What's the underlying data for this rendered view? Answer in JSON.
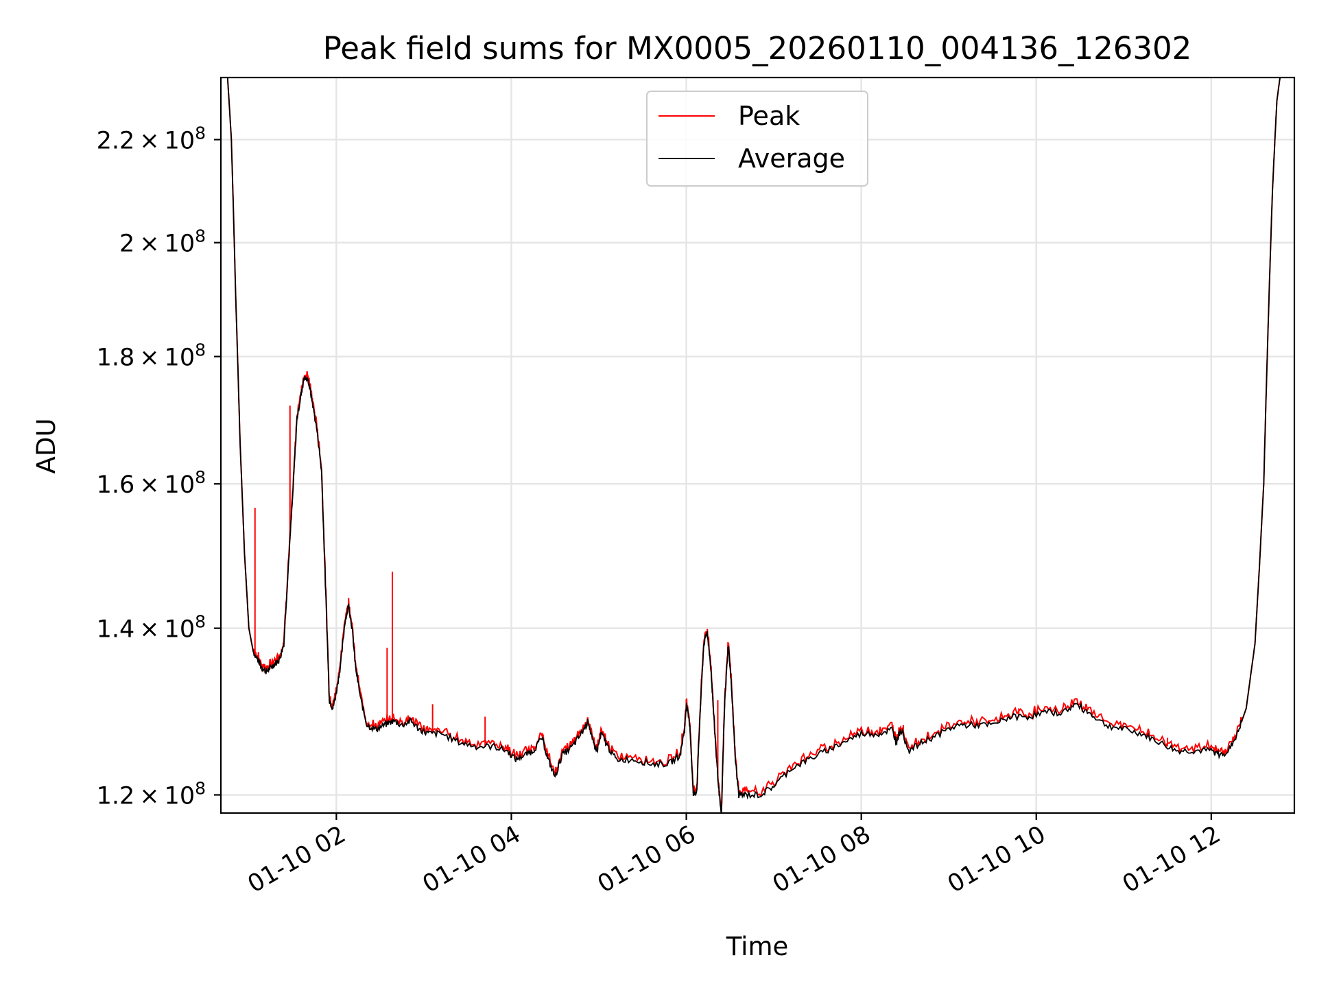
{
  "chart_data": {
    "type": "line",
    "title": "Peak field sums for MX0005_20260110_004136_126302",
    "xlabel": "Time",
    "ylabel": "ADU",
    "grid": true,
    "legend_position": "upper-center",
    "xlim": [
      0.68,
      12.95
    ],
    "ylim": [
      118000000.0,
      233000000.0
    ],
    "y_scale": "log",
    "x_ticks": [
      {
        "value": 2,
        "label": "01-10 02"
      },
      {
        "value": 4,
        "label": "01-10 04"
      },
      {
        "value": 6,
        "label": "01-10 06"
      },
      {
        "value": 8,
        "label": "01-10 08"
      },
      {
        "value": 10,
        "label": "01-10 10"
      },
      {
        "value": 12,
        "label": "01-10 12"
      }
    ],
    "y_ticks": [
      {
        "value": 120000000.0,
        "mantissa": "1.2",
        "base": "10",
        "exp": "8"
      },
      {
        "value": 140000000.0,
        "mantissa": "1.4",
        "base": "10",
        "exp": "8"
      },
      {
        "value": 160000000.0,
        "mantissa": "1.6",
        "base": "10",
        "exp": "8"
      },
      {
        "value": 180000000.0,
        "mantissa": "1.8",
        "base": "10",
        "exp": "8"
      },
      {
        "value": 200000000.0,
        "mantissa": "2",
        "base": "10",
        "exp": "8"
      },
      {
        "value": 220000000.0,
        "mantissa": "2.2",
        "base": "10",
        "exp": "8"
      }
    ],
    "series": [
      {
        "name": "Peak",
        "color": "#ff0000"
      },
      {
        "name": "Average",
        "color": "#000000"
      }
    ],
    "average_points": [
      [
        0.68,
        235000000.0
      ],
      [
        0.75,
        235000000.0
      ],
      [
        0.8,
        220000000.0
      ],
      [
        0.85,
        190000000.0
      ],
      [
        0.9,
        166000000.0
      ],
      [
        0.95,
        150000000.0
      ],
      [
        1.0,
        140000000.0
      ],
      [
        1.05,
        137000000.0
      ],
      [
        1.1,
        136000000.0
      ],
      [
        1.15,
        135000000.0
      ],
      [
        1.2,
        134500000.0
      ],
      [
        1.25,
        135000000.0
      ],
      [
        1.3,
        135500000.0
      ],
      [
        1.35,
        136000000.0
      ],
      [
        1.4,
        138000000.0
      ],
      [
        1.45,
        148000000.0
      ],
      [
        1.5,
        158000000.0
      ],
      [
        1.55,
        170000000.0
      ],
      [
        1.6,
        174000000.0
      ],
      [
        1.63,
        176500000.0
      ],
      [
        1.68,
        176000000.0
      ],
      [
        1.72,
        173000000.0
      ],
      [
        1.78,
        168000000.0
      ],
      [
        1.83,
        162000000.0
      ],
      [
        1.88,
        144000000.0
      ],
      [
        1.92,
        131000000.0
      ],
      [
        1.96,
        130000000.0
      ],
      [
        2.0,
        132000000.0
      ],
      [
        2.05,
        135500000.0
      ],
      [
        2.1,
        141000000.0
      ],
      [
        2.14,
        143000000.0
      ],
      [
        2.18,
        140000000.0
      ],
      [
        2.22,
        135000000.0
      ],
      [
        2.28,
        131000000.0
      ],
      [
        2.35,
        128000000.0
      ],
      [
        2.45,
        127500000.0
      ],
      [
        2.55,
        128000000.0
      ],
      [
        2.65,
        128500000.0
      ],
      [
        2.75,
        128000000.0
      ],
      [
        2.85,
        128500000.0
      ],
      [
        2.95,
        127500000.0
      ],
      [
        3.05,
        127000000.0
      ],
      [
        3.2,
        127000000.0
      ],
      [
        3.4,
        126000000.0
      ],
      [
        3.6,
        125500000.0
      ],
      [
        3.8,
        125500000.0
      ],
      [
        3.95,
        125000000.0
      ],
      [
        4.05,
        124000000.0
      ],
      [
        4.15,
        124500000.0
      ],
      [
        4.25,
        125000000.0
      ],
      [
        4.35,
        126500000.0
      ],
      [
        4.42,
        124000000.0
      ],
      [
        4.5,
        122000000.0
      ],
      [
        4.58,
        124500000.0
      ],
      [
        4.7,
        125500000.0
      ],
      [
        4.8,
        127000000.0
      ],
      [
        4.88,
        128500000.0
      ],
      [
        4.93,
        126000000.0
      ],
      [
        4.98,
        125000000.0
      ],
      [
        5.03,
        127000000.0
      ],
      [
        5.1,
        125500000.0
      ],
      [
        5.2,
        124000000.0
      ],
      [
        5.4,
        124000000.0
      ],
      [
        5.6,
        123500000.0
      ],
      [
        5.8,
        123500000.0
      ],
      [
        5.93,
        124500000.0
      ],
      [
        5.98,
        127500000.0
      ],
      [
        6.0,
        130500000.0
      ],
      [
        6.04,
        128000000.0
      ],
      [
        6.08,
        120000000.0
      ],
      [
        6.12,
        120500000.0
      ],
      [
        6.16,
        130000000.0
      ],
      [
        6.2,
        138000000.0
      ],
      [
        6.24,
        139500000.0
      ],
      [
        6.28,
        135000000.0
      ],
      [
        6.32,
        128000000.0
      ],
      [
        6.36,
        122000000.0
      ],
      [
        6.4,
        117500000.0
      ],
      [
        6.44,
        131000000.0
      ],
      [
        6.48,
        138000000.0
      ],
      [
        6.52,
        132000000.0
      ],
      [
        6.56,
        124000000.0
      ],
      [
        6.6,
        120000000.0
      ],
      [
        6.7,
        120000000.0
      ],
      [
        6.85,
        120000000.0
      ],
      [
        7.0,
        121000000.0
      ],
      [
        7.2,
        123000000.0
      ],
      [
        7.4,
        124000000.0
      ],
      [
        7.6,
        125000000.0
      ],
      [
        7.8,
        126000000.0
      ],
      [
        8.0,
        127000000.0
      ],
      [
        8.2,
        127000000.0
      ],
      [
        8.35,
        127500000.0
      ],
      [
        8.4,
        126000000.0
      ],
      [
        8.45,
        127500000.0
      ],
      [
        8.55,
        125000000.0
      ],
      [
        8.7,
        126000000.0
      ],
      [
        8.9,
        127000000.0
      ],
      [
        9.1,
        128000000.0
      ],
      [
        9.3,
        128000000.0
      ],
      [
        9.5,
        128000000.0
      ],
      [
        9.7,
        129000000.0
      ],
      [
        9.9,
        129000000.0
      ],
      [
        10.1,
        129500000.0
      ],
      [
        10.3,
        129500000.0
      ],
      [
        10.45,
        130500000.0
      ],
      [
        10.6,
        129500000.0
      ],
      [
        10.8,
        128000000.0
      ],
      [
        11.0,
        127500000.0
      ],
      [
        11.2,
        127000000.0
      ],
      [
        11.4,
        126000000.0
      ],
      [
        11.6,
        125000000.0
      ],
      [
        11.8,
        125000000.0
      ],
      [
        12.0,
        125000000.0
      ],
      [
        12.1,
        124500000.0
      ],
      [
        12.2,
        125000000.0
      ],
      [
        12.3,
        127000000.0
      ],
      [
        12.4,
        130000000.0
      ],
      [
        12.5,
        138000000.0
      ],
      [
        12.55,
        148000000.0
      ],
      [
        12.6,
        160000000.0
      ],
      [
        12.65,
        185000000.0
      ],
      [
        12.7,
        210000000.0
      ],
      [
        12.75,
        228000000.0
      ],
      [
        12.8,
        235000000.0
      ],
      [
        12.95,
        235000000.0
      ]
    ],
    "peak_spikes": [
      [
        1.07,
        156500000.0
      ],
      [
        1.47,
        172000000.0
      ],
      [
        2.58,
        137500000.0
      ],
      [
        2.64,
        147500000.0
      ],
      [
        3.1,
        130500000.0
      ],
      [
        3.7,
        129000000.0
      ],
      [
        5.95,
        127000000.0
      ],
      [
        6.36,
        131000000.0
      ],
      [
        8.48,
        128000000.0
      ],
      [
        9.8,
        130000000.0
      ],
      [
        10.4,
        130500000.0
      ],
      [
        11.5,
        126500000.0
      ]
    ]
  }
}
